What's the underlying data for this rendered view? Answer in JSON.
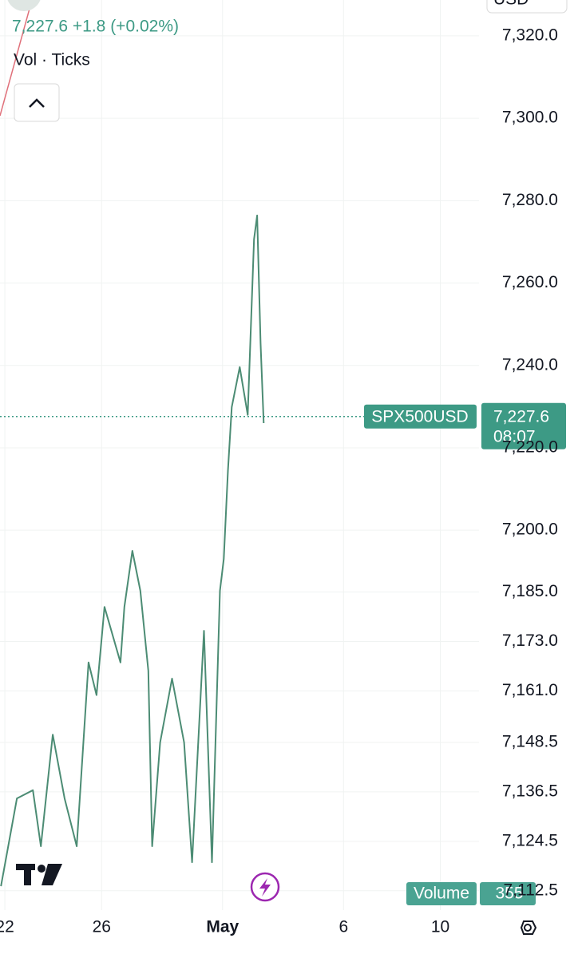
{
  "header": {
    "legend": "7,227.6 +1.8 (+0.02%)",
    "indicator": "Vol · Ticks",
    "currency": "USD"
  },
  "chart_data": {
    "type": "line",
    "x": [
      21.84,
      22.5,
      23.16,
      23.49,
      23.98,
      24.47,
      24.97,
      25.46,
      25.79,
      26.12,
      26.78,
      26.94,
      27.27,
      27.6,
      27.93,
      28.09,
      28.42,
      28.91,
      29.41,
      29.74,
      30.23,
      30.56,
      30.89,
      31.05,
      31.22,
      31.38,
      31.71,
      32.04,
      32.3,
      32.43,
      32.57,
      32.7
    ],
    "series": [
      {
        "name": "SPX500USD",
        "color": "#4c8c74",
        "values": [
          7113.6,
          7134.9,
          7136.9,
          7123.3,
          7150.4,
          7134.9,
          7123.3,
          7167.9,
          7160,
          7181.4,
          7167.9,
          7181.4,
          7195,
          7185.3,
          7165.9,
          7123.3,
          7148.5,
          7164,
          7148.5,
          7119.4,
          7175.6,
          7119.4,
          7185.3,
          7193,
          7214.4,
          7229.9,
          7239.6,
          7228,
          7270.6,
          7276.4,
          7245.4,
          7226
        ]
      }
    ],
    "xlim": [
      21.8,
      41.6
    ],
    "xticks": [
      22,
      26,
      {
        "value": 31,
        "label": "May"
      },
      {
        "value": 36,
        "label": "6"
      },
      {
        "value": 40,
        "label": "10"
      }
    ],
    "ylim": [
      7107.8,
      7328.7
    ],
    "yticks": [
      {
        "value": 7320,
        "label": "7,320.0"
      },
      {
        "value": 7300,
        "label": "7,300.0"
      },
      {
        "value": 7280,
        "label": "7,280.0"
      },
      {
        "value": 7260,
        "label": "7,260.0"
      },
      {
        "value": 7240,
        "label": "7,240.0"
      },
      {
        "value": 7220,
        "label": "7,220.0"
      },
      {
        "value": 7200,
        "label": "7,200.0"
      },
      {
        "value": 7185,
        "label": "7,185.0"
      },
      {
        "value": 7173,
        "label": "7,173.0"
      },
      {
        "value": 7161,
        "label": "7,161.0"
      },
      {
        "value": 7148.5,
        "label": "7,148.5"
      },
      {
        "value": 7136.5,
        "label": "7,136.5"
      },
      {
        "value": 7124.5,
        "label": "7,124.5"
      },
      {
        "value": 7112.5,
        "label": "7,112.5"
      }
    ],
    "grid": true,
    "last_price": 7227.6,
    "last_price_label": "7,227.6",
    "countdown": "08:07",
    "volume_label": "Volume",
    "volume_value": 355
  }
}
